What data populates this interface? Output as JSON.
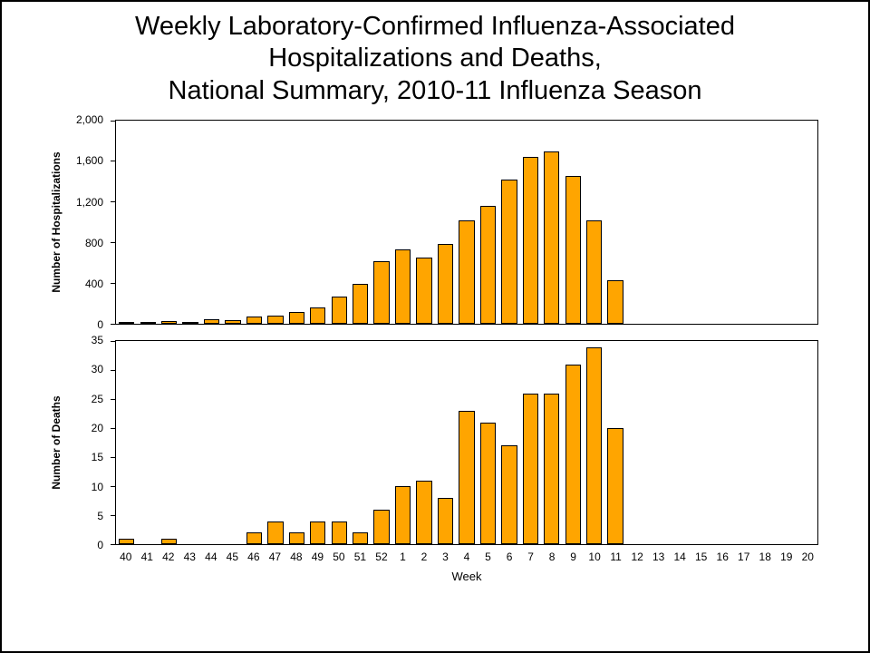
{
  "page": {
    "title_line1": "Weekly Laboratory-Confirmed Influenza-Associated",
    "title_line2": "Hospitalizations and Deaths,",
    "title_line3": "National Summary, 2010-11 Influenza Season"
  },
  "chart_data": [
    {
      "type": "bar",
      "title": "",
      "ylabel": "Number of Hospitalizations",
      "xlabel": "",
      "show_x_labels": false,
      "ylim": [
        0,
        2000
      ],
      "yticks": [
        0,
        400,
        800,
        1200,
        1600,
        2000
      ],
      "ytick_labels": [
        "0",
        "400",
        "800",
        "1,200",
        "1,600",
        "2,000"
      ],
      "bar_color": "#FFA500",
      "bar_border": "#000000",
      "categories": [
        "40",
        "41",
        "42",
        "43",
        "44",
        "45",
        "46",
        "47",
        "48",
        "49",
        "50",
        "51",
        "52",
        "1",
        "2",
        "3",
        "4",
        "5",
        "6",
        "7",
        "8",
        "9",
        "10",
        "11",
        "12",
        "13",
        "14",
        "15",
        "16",
        "17",
        "18",
        "19",
        "20"
      ],
      "values": [
        15,
        10,
        30,
        15,
        45,
        40,
        75,
        80,
        115,
        160,
        265,
        390,
        620,
        730,
        650,
        790,
        1020,
        1160,
        1420,
        1640,
        1700,
        1460,
        1020,
        430,
        0,
        0,
        0,
        0,
        0,
        0,
        0,
        0,
        0
      ]
    },
    {
      "type": "bar",
      "title": "",
      "ylabel": "Number of Deaths",
      "xlabel": "Week",
      "show_x_labels": true,
      "ylim": [
        0,
        35
      ],
      "yticks": [
        0,
        5,
        10,
        15,
        20,
        25,
        30,
        35
      ],
      "ytick_labels": [
        "0",
        "5",
        "10",
        "15",
        "20",
        "25",
        "30",
        "35"
      ],
      "bar_color": "#FFA500",
      "bar_border": "#000000",
      "categories": [
        "40",
        "41",
        "42",
        "43",
        "44",
        "45",
        "46",
        "47",
        "48",
        "49",
        "50",
        "51",
        "52",
        "1",
        "2",
        "3",
        "4",
        "5",
        "6",
        "7",
        "8",
        "9",
        "10",
        "11",
        "12",
        "13",
        "14",
        "15",
        "16",
        "17",
        "18",
        "19",
        "20"
      ],
      "values": [
        1,
        0,
        1,
        0,
        0,
        0,
        2,
        4,
        2,
        4,
        4,
        2,
        6,
        10,
        11,
        8,
        23,
        21,
        17,
        26,
        26,
        31,
        34,
        20,
        0,
        0,
        0,
        0,
        0,
        0,
        0,
        0,
        0
      ]
    }
  ]
}
